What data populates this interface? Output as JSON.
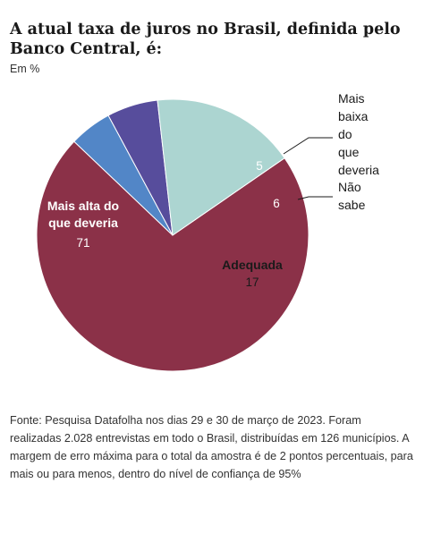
{
  "header": {
    "title": "A atual taxa de juros no Brasil, definida pelo Banco Central, é:",
    "unit": "Em %"
  },
  "chart_data": {
    "type": "pie",
    "unit": "Em %",
    "slices": [
      {
        "label": "Mais alta do que deveria",
        "label_lines": [
          "Mais alta do",
          "que deveria"
        ],
        "value": 71,
        "color": "#8b3148",
        "text_color": "#ffffff"
      },
      {
        "label": "Mais baixa do que deveria",
        "label_lines": [
          "Mais",
          "baixa",
          "do",
          "que",
          "deveria"
        ],
        "value": 5,
        "color": "#5286c7",
        "text_color": "#ffffff"
      },
      {
        "label": "Não sabe",
        "label_lines": [
          "Não",
          "sabe"
        ],
        "value": 6,
        "color": "#574d9c",
        "text_color": "#ffffff"
      },
      {
        "label": "Adequada",
        "label_lines": [
          "Adequada"
        ],
        "value": 17,
        "color": "#acd5d1",
        "text_color": "#1a1a1a"
      }
    ]
  },
  "footer": {
    "source": "Fonte: Pesquisa Datafolha nos dias 29 e 30 de março de 2023. Foram realizadas 2.028 entrevistas em todo o Brasil, distribuídas em 126 municípios. A margem de erro máxima para o total da amostra é de 2 pontos percentuais, para mais ou para menos, dentro do nível de confiança de 95%"
  }
}
